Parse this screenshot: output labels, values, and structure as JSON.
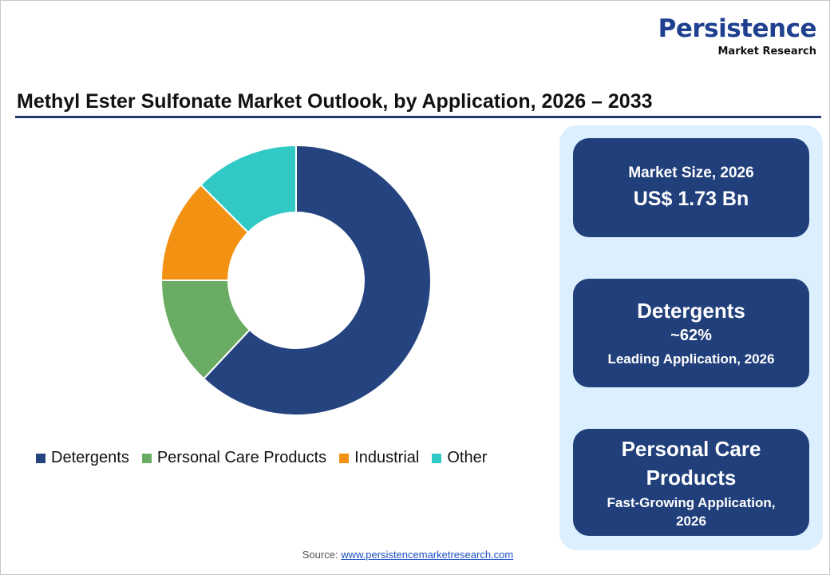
{
  "logo": {
    "line1": "Persistence",
    "line2": "Market Research"
  },
  "chart_data": {
    "type": "pie",
    "subtype": "donut",
    "title": "Methyl Ester Sulfonate Market Outlook, by Application, 2026 – 2033",
    "categories": [
      "Detergents",
      "Personal Care Products",
      "Industrial",
      "Other"
    ],
    "values": [
      62,
      13,
      12.5,
      12.5
    ],
    "unit": "%",
    "colors": [
      "#25447f",
      "#6aac64",
      "#f39212",
      "#31c9c6"
    ],
    "legend_position": "bottom"
  },
  "cards": [
    {
      "line1": "Market Size, 2026",
      "line2": "US$ 1.73 Bn"
    },
    {
      "line1": "Detergents",
      "line2": "~62%",
      "line3": "Leading Application, 2026"
    },
    {
      "line1": "Personal Care Products",
      "line2": "Fast-Growing Application, 2026"
    }
  ],
  "source": {
    "label": "Source:",
    "link": "www.persistencemarketresearch.com"
  }
}
